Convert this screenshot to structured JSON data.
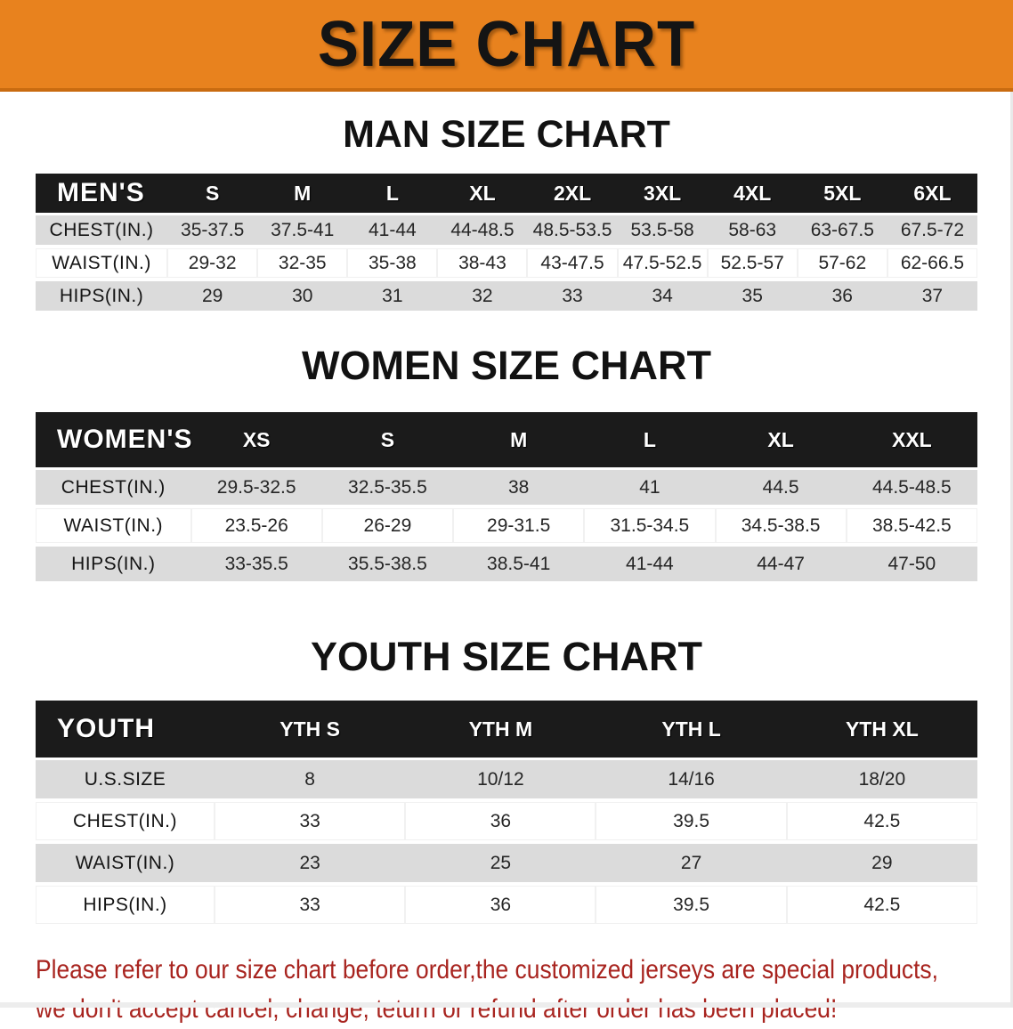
{
  "banner": {
    "title": "SIZE CHART",
    "bg_color": "#e8821e",
    "title_color": "#141414"
  },
  "colors": {
    "table_header_bg": "#1b1b1b",
    "table_header_text": "#ffffff",
    "row_stripe": "#dbdbdb",
    "disclaimer_text": "#a8241f"
  },
  "sections": [
    {
      "heading": "MAN SIZE CHART",
      "table": {
        "header_label": "MEN'S",
        "columns": [
          "S",
          "M",
          "L",
          "XL",
          "2XL",
          "3XL",
          "4XL",
          "5XL",
          "6XL"
        ],
        "rows": [
          {
            "label": "CHEST(IN.)",
            "values": [
              "35-37.5",
              "37.5-41",
              "41-44",
              "44-48.5",
              "48.5-53.5",
              "53.5-58",
              "58-63",
              "63-67.5",
              "67.5-72"
            ]
          },
          {
            "label": "WAIST(IN.)",
            "values": [
              "29-32",
              "32-35",
              "35-38",
              "38-43",
              "43-47.5",
              "47.5-52.5",
              "52.5-57",
              "57-62",
              "62-66.5"
            ]
          },
          {
            "label": "HIPS(IN.)",
            "values": [
              "29",
              "30",
              "31",
              "32",
              "33",
              "34",
              "35",
              "36",
              "37"
            ]
          }
        ]
      }
    },
    {
      "heading": "WOMEN SIZE CHART",
      "table": {
        "header_label": "WOMEN'S",
        "columns": [
          "XS",
          "S",
          "M",
          "L",
          "XL",
          "XXL"
        ],
        "rows": [
          {
            "label": "CHEST(IN.)",
            "values": [
              "29.5-32.5",
              "32.5-35.5",
              "38",
              "41",
              "44.5",
              "44.5-48.5"
            ]
          },
          {
            "label": "WAIST(IN.)",
            "values": [
              "23.5-26",
              "26-29",
              "29-31.5",
              "31.5-34.5",
              "34.5-38.5",
              "38.5-42.5"
            ]
          },
          {
            "label": "HIPS(IN.)",
            "values": [
              "33-35.5",
              "35.5-38.5",
              "38.5-41",
              "41-44",
              "44-47",
              "47-50"
            ]
          }
        ]
      }
    },
    {
      "heading": "YOUTH SIZE CHART",
      "table": {
        "header_label": "YOUTH",
        "columns": [
          "YTH S",
          "YTH M",
          "YTH L",
          "YTH XL"
        ],
        "rows": [
          {
            "label": "U.S.SIZE",
            "values": [
              "8",
              "10/12",
              "14/16",
              "18/20"
            ]
          },
          {
            "label": "CHEST(IN.)",
            "values": [
              "33",
              "36",
              "39.5",
              "42.5"
            ]
          },
          {
            "label": "WAIST(IN.)",
            "values": [
              "23",
              "25",
              "27",
              "29"
            ]
          },
          {
            "label": "HIPS(IN.)",
            "values": [
              "33",
              "36",
              "39.5",
              "42.5"
            ]
          }
        ]
      }
    }
  ],
  "table_layout": {
    "label_col_percent": [
      14,
      16.5,
      19
    ]
  },
  "disclaimer": {
    "line1": "Please refer to our size chart before order,the customized jerseys are special products,",
    "line2": "we don't accept cancel, change, teturn or refund after order has been placed!"
  }
}
